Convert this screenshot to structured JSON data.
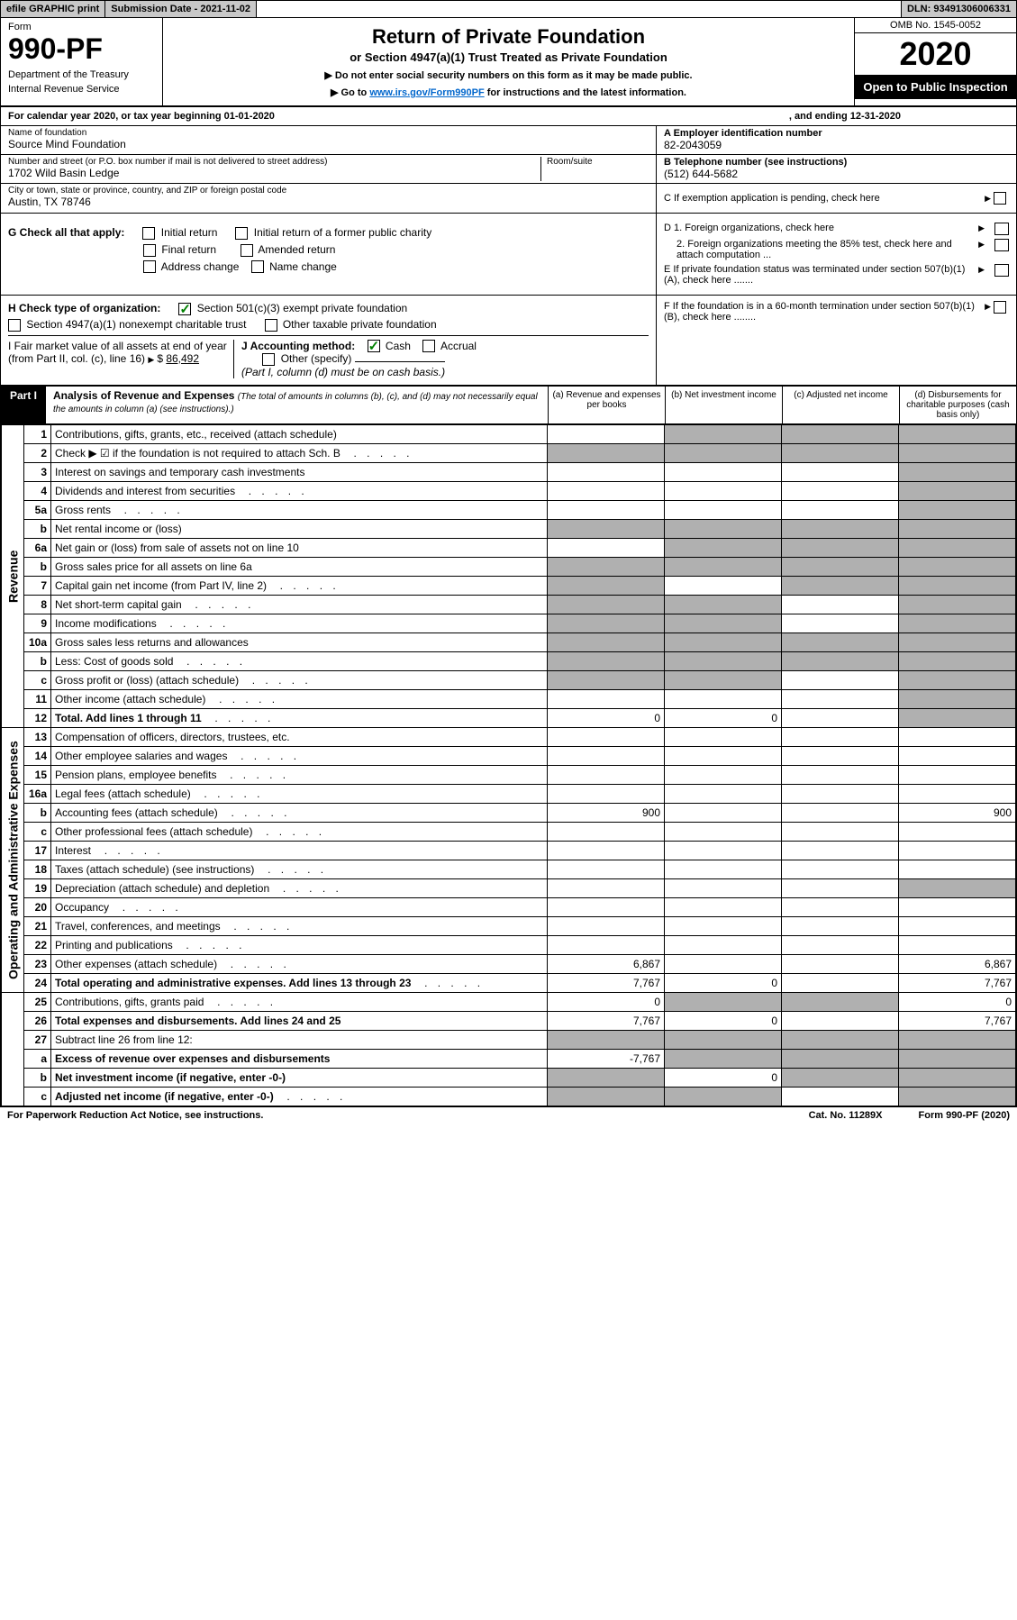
{
  "topbar": {
    "efile": "efile GRAPHIC print",
    "subdate_label": "Submission Date - ",
    "subdate": "2021-11-02",
    "dln_label": "DLN: ",
    "dln": "93491306006331"
  },
  "header": {
    "form_label": "Form",
    "form_number": "990-PF",
    "dept1": "Department of the Treasury",
    "dept2": "Internal Revenue Service",
    "title": "Return of Private Foundation",
    "subtitle": "or Section 4947(a)(1) Trust Treated as Private Foundation",
    "note1": "▶ Do not enter social security numbers on this form as it may be made public.",
    "note2_pre": "▶ Go to ",
    "note2_link": "www.irs.gov/Form990PF",
    "note2_post": " for instructions and the latest information.",
    "omb": "OMB No. 1545-0052",
    "year": "2020",
    "inspect": "Open to Public Inspection"
  },
  "calyear": {
    "text": "For calendar year 2020, or tax year beginning 01-01-2020",
    "ending": ", and ending 12-31-2020"
  },
  "info": {
    "name_label": "Name of foundation",
    "name": "Source Mind Foundation",
    "addr_label": "Number and street (or P.O. box number if mail is not delivered to street address)",
    "addr": "1702 Wild Basin Ledge",
    "room_label": "Room/suite",
    "city_label": "City or town, state or province, country, and ZIP or foreign postal code",
    "city": "Austin, TX  78746",
    "ein_label": "A Employer identification number",
    "ein": "82-2043059",
    "phone_label": "B Telephone number (see instructions)",
    "phone": "(512) 644-5682",
    "c_label": "C If exemption application is pending, check here"
  },
  "checks": {
    "g_label": "G Check all that apply:",
    "g_items": [
      "Initial return",
      "Initial return of a former public charity",
      "Final return",
      "Amended return",
      "Address change",
      "Name change"
    ],
    "d1": "D 1. Foreign organizations, check here",
    "d2": "2. Foreign organizations meeting the 85% test, check here and attach computation ...",
    "e": "E  If private foundation status was terminated under section 507(b)(1)(A), check here .......",
    "h_label": "H Check type of organization:",
    "h1": "Section 501(c)(3) exempt private foundation",
    "h2": "Section 4947(a)(1) nonexempt charitable trust",
    "h3": "Other taxable private foundation",
    "i_label": "I Fair market value of all assets at end of year (from Part II, col. (c), line 16)",
    "i_val": "86,492",
    "j_label": "J Accounting method:",
    "j1": "Cash",
    "j2": "Accrual",
    "j3": "Other (specify)",
    "j_note": "(Part I, column (d) must be on cash basis.)",
    "f": "F  If the foundation is in a 60-month termination under section 507(b)(1)(B), check here ........"
  },
  "part1": {
    "label": "Part I",
    "title": "Analysis of Revenue and Expenses",
    "sub": "(The total of amounts in columns (b), (c), and (d) may not necessarily equal the amounts in column (a) (see instructions).)",
    "col_a": "(a)   Revenue and expenses per books",
    "col_b": "(b)   Net investment income",
    "col_c": "(c)   Adjusted net income",
    "col_d": "(d)  Disbursements for charitable purposes (cash basis only)",
    "side_rev": "Revenue",
    "side_exp": "Operating and Administrative Expenses"
  },
  "rows": [
    {
      "n": "1",
      "d": "Contributions, gifts, grants, etc., received (attach schedule)",
      "a": "",
      "b": "shade",
      "c": "shade",
      "dd": "shade"
    },
    {
      "n": "2",
      "d": "Check ▶ ☑ if the foundation is not required to attach Sch. B",
      "dotted": true,
      "a": "shade",
      "b": "shade",
      "c": "shade",
      "dd": "shade"
    },
    {
      "n": "3",
      "d": "Interest on savings and temporary cash investments",
      "a": "",
      "b": "",
      "c": "",
      "dd": "shade"
    },
    {
      "n": "4",
      "d": "Dividends and interest from securities",
      "dotted": true,
      "a": "",
      "b": "",
      "c": "",
      "dd": "shade"
    },
    {
      "n": "5a",
      "d": "Gross rents",
      "dotted": true,
      "a": "",
      "b": "",
      "c": "",
      "dd": "shade"
    },
    {
      "n": "b",
      "d": "Net rental income or (loss)",
      "a": "shade",
      "b": "shade",
      "c": "shade",
      "dd": "shade"
    },
    {
      "n": "6a",
      "d": "Net gain or (loss) from sale of assets not on line 10",
      "a": "",
      "b": "shade",
      "c": "shade",
      "dd": "shade"
    },
    {
      "n": "b",
      "d": "Gross sales price for all assets on line 6a",
      "a": "shade",
      "b": "shade",
      "c": "shade",
      "dd": "shade"
    },
    {
      "n": "7",
      "d": "Capital gain net income (from Part IV, line 2)",
      "dotted": true,
      "a": "shade",
      "b": "",
      "c": "shade",
      "dd": "shade"
    },
    {
      "n": "8",
      "d": "Net short-term capital gain",
      "dotted": true,
      "a": "shade",
      "b": "shade",
      "c": "",
      "dd": "shade"
    },
    {
      "n": "9",
      "d": "Income modifications",
      "dotted": true,
      "a": "shade",
      "b": "shade",
      "c": "",
      "dd": "shade"
    },
    {
      "n": "10a",
      "d": "Gross sales less returns and allowances",
      "a": "shade",
      "b": "shade",
      "c": "shade",
      "dd": "shade"
    },
    {
      "n": "b",
      "d": "Less: Cost of goods sold",
      "dotted": true,
      "a": "shade",
      "b": "shade",
      "c": "shade",
      "dd": "shade"
    },
    {
      "n": "c",
      "d": "Gross profit or (loss) (attach schedule)",
      "dotted": true,
      "a": "shade",
      "b": "shade",
      "c": "",
      "dd": "shade"
    },
    {
      "n": "11",
      "d": "Other income (attach schedule)",
      "dotted": true,
      "a": "",
      "b": "",
      "c": "",
      "dd": "shade"
    },
    {
      "n": "12",
      "d": "Total. Add lines 1 through 11",
      "bold": true,
      "dotted": true,
      "a": "0",
      "b": "0",
      "c": "",
      "dd": "shade"
    },
    {
      "n": "13",
      "d": "Compensation of officers, directors, trustees, etc.",
      "a": "",
      "b": "",
      "c": "",
      "dd": ""
    },
    {
      "n": "14",
      "d": "Other employee salaries and wages",
      "dotted": true,
      "a": "",
      "b": "",
      "c": "",
      "dd": ""
    },
    {
      "n": "15",
      "d": "Pension plans, employee benefits",
      "dotted": true,
      "a": "",
      "b": "",
      "c": "",
      "dd": ""
    },
    {
      "n": "16a",
      "d": "Legal fees (attach schedule)",
      "dotted": true,
      "a": "",
      "b": "",
      "c": "",
      "dd": ""
    },
    {
      "n": "b",
      "d": "Accounting fees (attach schedule)",
      "dotted": true,
      "a": "900",
      "b": "",
      "c": "",
      "dd": "900"
    },
    {
      "n": "c",
      "d": "Other professional fees (attach schedule)",
      "dotted": true,
      "a": "",
      "b": "",
      "c": "",
      "dd": ""
    },
    {
      "n": "17",
      "d": "Interest",
      "dotted": true,
      "a": "",
      "b": "",
      "c": "",
      "dd": ""
    },
    {
      "n": "18",
      "d": "Taxes (attach schedule) (see instructions)",
      "dotted": true,
      "a": "",
      "b": "",
      "c": "",
      "dd": ""
    },
    {
      "n": "19",
      "d": "Depreciation (attach schedule) and depletion",
      "dotted": true,
      "a": "",
      "b": "",
      "c": "",
      "dd": "shade"
    },
    {
      "n": "20",
      "d": "Occupancy",
      "dotted": true,
      "a": "",
      "b": "",
      "c": "",
      "dd": ""
    },
    {
      "n": "21",
      "d": "Travel, conferences, and meetings",
      "dotted": true,
      "a": "",
      "b": "",
      "c": "",
      "dd": ""
    },
    {
      "n": "22",
      "d": "Printing and publications",
      "dotted": true,
      "a": "",
      "b": "",
      "c": "",
      "dd": ""
    },
    {
      "n": "23",
      "d": "Other expenses (attach schedule)",
      "dotted": true,
      "icon": true,
      "a": "6,867",
      "b": "",
      "c": "",
      "dd": "6,867"
    },
    {
      "n": "24",
      "d": "Total operating and administrative expenses. Add lines 13 through 23",
      "bold": true,
      "dotted": true,
      "a": "7,767",
      "b": "0",
      "c": "",
      "dd": "7,767"
    },
    {
      "n": "25",
      "d": "Contributions, gifts, grants paid",
      "dotted": true,
      "a": "0",
      "b": "shade",
      "c": "shade",
      "dd": "0"
    },
    {
      "n": "26",
      "d": "Total expenses and disbursements. Add lines 24 and 25",
      "bold": true,
      "a": "7,767",
      "b": "0",
      "c": "",
      "dd": "7,767"
    },
    {
      "n": "27",
      "d": "Subtract line 26 from line 12:",
      "a": "shade",
      "b": "shade",
      "c": "shade",
      "dd": "shade"
    },
    {
      "n": "a",
      "d": "Excess of revenue over expenses and disbursements",
      "bold": true,
      "a": "-7,767",
      "b": "shade",
      "c": "shade",
      "dd": "shade"
    },
    {
      "n": "b",
      "d": "Net investment income (if negative, enter -0-)",
      "bold": true,
      "a": "shade",
      "b": "0",
      "c": "shade",
      "dd": "shade"
    },
    {
      "n": "c",
      "d": "Adjusted net income (if negative, enter -0-)",
      "bold": true,
      "dotted": true,
      "a": "shade",
      "b": "shade",
      "c": "",
      "dd": "shade"
    }
  ],
  "footer": {
    "left": "For Paperwork Reduction Act Notice, see instructions.",
    "mid": "Cat. No. 11289X",
    "right": "Form 990-PF (2020)"
  }
}
